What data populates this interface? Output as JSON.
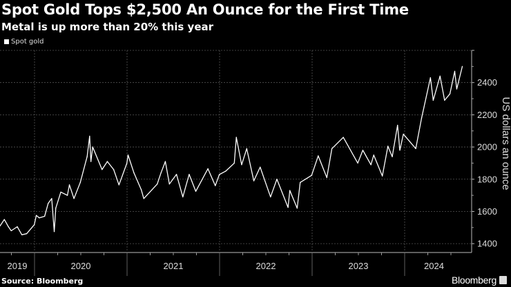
{
  "chart_data": {
    "type": "line",
    "title": "Spot Gold Tops $2,500 An Ounce for the First Time",
    "subtitle": "Metal is up more than 20% this year",
    "ylabel": "US dollars an ounce",
    "xlabel": "",
    "ylim": [
      1345,
      2600
    ],
    "yticks": [
      "1400",
      "1600",
      "1800",
      "2000",
      "2200",
      "2400"
    ],
    "xticks": [
      "2019",
      "2020",
      "2021",
      "2022",
      "2023",
      "2024"
    ],
    "xlim": [
      "2019-08-12",
      "2024-12-31"
    ],
    "grid": true,
    "y_axis_position": "right",
    "legend_position": "top-left",
    "source": "Source: Bloomberg",
    "brand": "Bloomberg",
    "colors": {
      "background": "#000000",
      "line": "#ffffff",
      "grid": "#555555"
    },
    "series": [
      {
        "name": "Spot gold",
        "points": [
          [
            "2019-08-15",
            1510
          ],
          [
            "2019-09-04",
            1550
          ],
          [
            "2019-09-20",
            1505
          ],
          [
            "2019-10-01",
            1480
          ],
          [
            "2019-10-25",
            1505
          ],
          [
            "2019-11-12",
            1455
          ],
          [
            "2019-12-01",
            1462
          ],
          [
            "2019-12-31",
            1517
          ],
          [
            "2020-01-08",
            1575
          ],
          [
            "2020-01-20",
            1560
          ],
          [
            "2020-02-10",
            1570
          ],
          [
            "2020-02-24",
            1650
          ],
          [
            "2020-03-09",
            1680
          ],
          [
            "2020-03-19",
            1475
          ],
          [
            "2020-03-25",
            1620
          ],
          [
            "2020-04-14",
            1720
          ],
          [
            "2020-05-10",
            1700
          ],
          [
            "2020-05-18",
            1765
          ],
          [
            "2020-06-05",
            1680
          ],
          [
            "2020-06-30",
            1780
          ],
          [
            "2020-07-27",
            1940
          ],
          [
            "2020-08-06",
            2067
          ],
          [
            "2020-08-11",
            1910
          ],
          [
            "2020-08-18",
            2000
          ],
          [
            "2020-09-24",
            1860
          ],
          [
            "2020-10-15",
            1910
          ],
          [
            "2020-11-09",
            1860
          ],
          [
            "2020-11-30",
            1765
          ],
          [
            "2020-12-31",
            1898
          ],
          [
            "2021-01-05",
            1950
          ],
          [
            "2021-01-28",
            1840
          ],
          [
            "2021-02-26",
            1735
          ],
          [
            "2021-03-08",
            1680
          ],
          [
            "2021-04-30",
            1770
          ],
          [
            "2021-05-15",
            1840
          ],
          [
            "2021-06-01",
            1910
          ],
          [
            "2021-06-17",
            1770
          ],
          [
            "2021-07-15",
            1830
          ],
          [
            "2021-08-09",
            1690
          ],
          [
            "2021-09-03",
            1830
          ],
          [
            "2021-09-29",
            1725
          ],
          [
            "2021-11-16",
            1865
          ],
          [
            "2021-12-15",
            1760
          ],
          [
            "2021-12-31",
            1829
          ],
          [
            "2022-01-25",
            1850
          ],
          [
            "2022-02-28",
            1900
          ],
          [
            "2022-03-08",
            2060
          ],
          [
            "2022-03-29",
            1890
          ],
          [
            "2022-04-18",
            1990
          ],
          [
            "2022-05-16",
            1790
          ],
          [
            "2022-06-10",
            1875
          ],
          [
            "2022-07-21",
            1690
          ],
          [
            "2022-08-15",
            1800
          ],
          [
            "2022-09-28",
            1625
          ],
          [
            "2022-10-05",
            1730
          ],
          [
            "2022-11-03",
            1620
          ],
          [
            "2022-11-15",
            1780
          ],
          [
            "2022-12-30",
            1824
          ],
          [
            "2023-01-25",
            1945
          ],
          [
            "2023-02-28",
            1810
          ],
          [
            "2023-03-20",
            1990
          ],
          [
            "2023-05-04",
            2060
          ],
          [
            "2023-06-30",
            1900
          ],
          [
            "2023-07-20",
            1980
          ],
          [
            "2023-08-21",
            1890
          ],
          [
            "2023-09-01",
            1950
          ],
          [
            "2023-10-05",
            1820
          ],
          [
            "2023-10-27",
            2005
          ],
          [
            "2023-11-13",
            1940
          ],
          [
            "2023-12-04",
            2135
          ],
          [
            "2023-12-13",
            1980
          ],
          [
            "2023-12-27",
            2080
          ],
          [
            "2024-02-14",
            1990
          ],
          [
            "2024-03-08",
            2180
          ],
          [
            "2024-04-12",
            2430
          ],
          [
            "2024-04-23",
            2290
          ],
          [
            "2024-05-20",
            2440
          ],
          [
            "2024-06-07",
            2290
          ],
          [
            "2024-06-28",
            2330
          ],
          [
            "2024-07-17",
            2470
          ],
          [
            "2024-07-25",
            2360
          ],
          [
            "2024-08-16",
            2500
          ]
        ]
      }
    ]
  }
}
